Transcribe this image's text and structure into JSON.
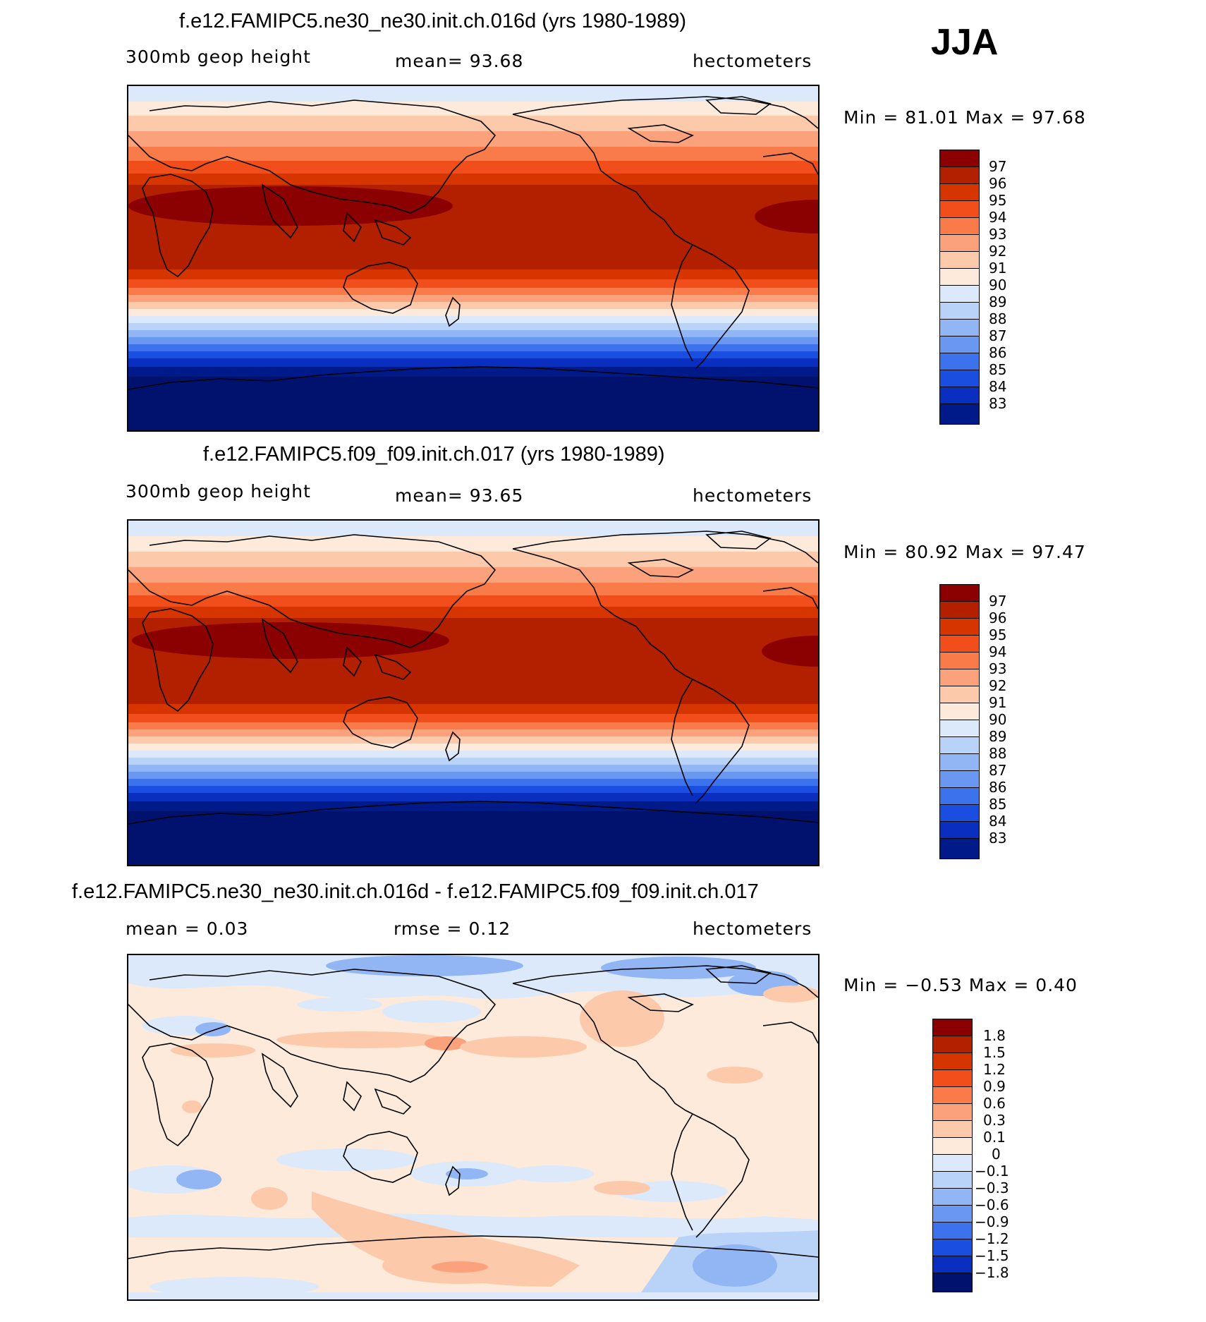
{
  "season": "JJA",
  "panels": [
    {
      "id": "top",
      "title": "f.e12.FAMIPC5.ne30_ne30.init.ch.016d (yrs 1980-1989)",
      "left_label": "300mb  geop  height",
      "center_label": "mean=   93.68",
      "units": "hectometers",
      "minmax": "Min  =   81.01  Max  =   97.68",
      "colorbar_labels": [
        "97",
        "96",
        "95",
        "94",
        "93",
        "92",
        "91",
        "90",
        "89",
        "88",
        "87",
        "86",
        "85",
        "84",
        "83"
      ]
    },
    {
      "id": "middle",
      "title": "f.e12.FAMIPC5.f09_f09.init.ch.017 (yrs 1980-1989)",
      "left_label": "300mb  geop  height",
      "center_label": "mean=   93.65",
      "units": "hectometers",
      "minmax": "Min  =   80.92  Max  =   97.47",
      "colorbar_labels": [
        "97",
        "96",
        "95",
        "94",
        "93",
        "92",
        "91",
        "90",
        "89",
        "88",
        "87",
        "86",
        "85",
        "84",
        "83"
      ]
    },
    {
      "id": "diff",
      "title": "f.e12.FAMIPC5.ne30_ne30.init.ch.016d - f.e12.FAMIPC5.f09_f09.init.ch.017",
      "left_label": "mean  =     0.03",
      "center_label": "rmse  =     0.12",
      "units": "hectometers",
      "minmax": "Min  =   −0.53  Max  =     0.40",
      "colorbar_labels": [
        "1.8",
        "1.5",
        "1.2",
        "0.9",
        "0.6",
        "0.3",
        "0.1",
        "0",
        "−0.1",
        "−0.3",
        "−0.6",
        "−0.9",
        "−1.2",
        "−1.5",
        "−1.8"
      ]
    }
  ],
  "colors": {
    "field_scale": [
      "#8b0000",
      "#b22000",
      "#d63500",
      "#f24e1b",
      "#f97b4a",
      "#fba27c",
      "#fcc9ab",
      "#fdeadb",
      "#dbe9fa",
      "#b9d2f7",
      "#92b5f4",
      "#6a97f0",
      "#3c72ec",
      "#1a4ee0",
      "#0a2fc0",
      "#001a8a",
      "#00126e"
    ],
    "diff_scale": [
      "#8b0000",
      "#b22000",
      "#d63500",
      "#f24e1b",
      "#f97b4a",
      "#fba27c",
      "#fcc9ab",
      "#fdeadb",
      "#dbe9fa",
      "#b9d2f7",
      "#92b5f4",
      "#6a97f0",
      "#3c72ec",
      "#1a4ee0",
      "#0a2fc0",
      "#00126e"
    ]
  }
}
